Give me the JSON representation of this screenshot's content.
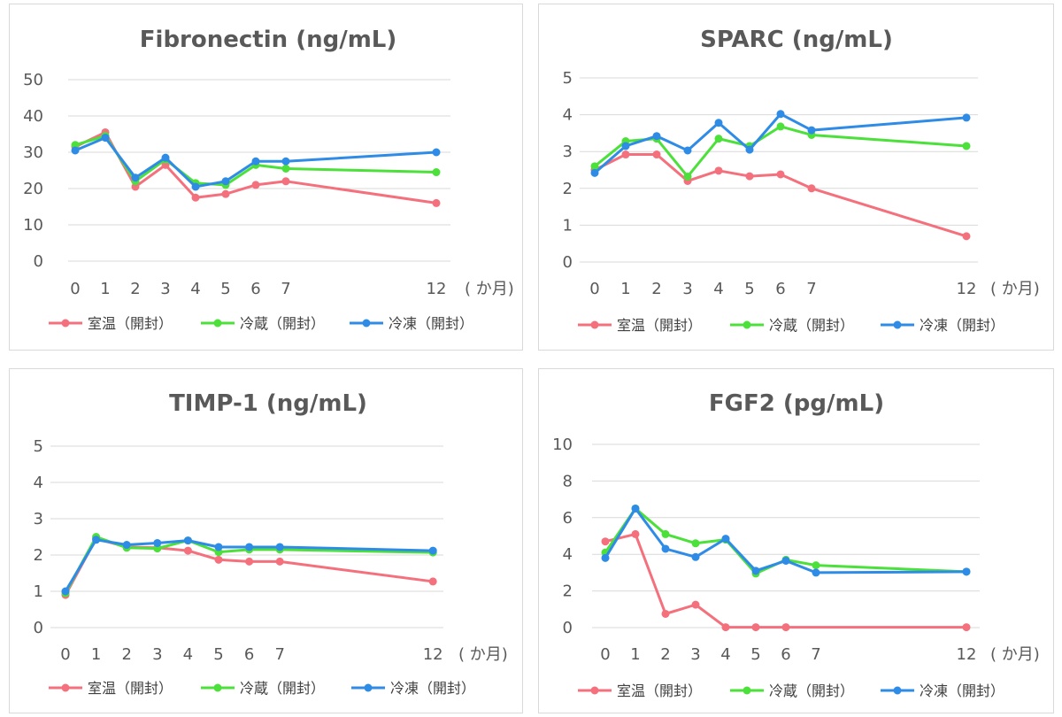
{
  "colors": {
    "room_temp": "#f4707c",
    "refrigerated": "#4ce03a",
    "frozen": "#2e8be6",
    "grid": "#d9d9d9",
    "text": "#595959"
  },
  "chart_data": [
    {
      "type": "line",
      "title": "Fibronectin (ng/mL)",
      "x": [
        0,
        1,
        2,
        3,
        4,
        5,
        6,
        7,
        12
      ],
      "xtick_labels": [
        "0",
        "1",
        "2",
        "3",
        "4",
        "5",
        "6",
        "7",
        "12"
      ],
      "x_unit": "( か月)",
      "ylim": [
        0,
        50
      ],
      "yticks": [
        0,
        10,
        20,
        30,
        40,
        50
      ],
      "grid": true,
      "legend_position": "bottom",
      "series": [
        {
          "name": "室温（開封）",
          "color_key": "room_temp",
          "values": [
            31.5,
            35.5,
            20.5,
            26.5,
            17.5,
            18.5,
            21,
            22,
            16
          ]
        },
        {
          "name": "冷蔵（開封）",
          "color_key": "refrigerated",
          "values": [
            32,
            34.5,
            22,
            28,
            21.5,
            21,
            26.5,
            25.5,
            24.5
          ]
        },
        {
          "name": "冷凍（開封）",
          "color_key": "frozen",
          "values": [
            30.5,
            34,
            23,
            28.5,
            20.5,
            22,
            27.5,
            27.5,
            30
          ]
        }
      ]
    },
    {
      "type": "line",
      "title": "SPARC (ng/mL)",
      "x": [
        0,
        1,
        2,
        3,
        4,
        5,
        6,
        7,
        12
      ],
      "xtick_labels": [
        "0",
        "1",
        "2",
        "3",
        "4",
        "5",
        "6",
        "7",
        "12"
      ],
      "x_unit": "( か月)",
      "ylim": [
        0,
        5
      ],
      "yticks": [
        0,
        1,
        2,
        3,
        4,
        5
      ],
      "grid": true,
      "legend_position": "bottom",
      "series": [
        {
          "name": "室温（開封）",
          "color_key": "room_temp",
          "values": [
            2.5,
            2.92,
            2.92,
            2.2,
            2.48,
            2.33,
            2.38,
            2.0,
            0.7
          ]
        },
        {
          "name": "冷蔵（開封）",
          "color_key": "refrigerated",
          "values": [
            2.6,
            3.28,
            3.35,
            2.32,
            3.35,
            3.15,
            3.68,
            3.45,
            3.15
          ]
        },
        {
          "name": "冷凍（開封）",
          "color_key": "frozen",
          "values": [
            2.42,
            3.15,
            3.42,
            3.03,
            3.78,
            3.05,
            4.02,
            3.58,
            3.92
          ]
        }
      ]
    },
    {
      "type": "line",
      "title": "TIMP-1 (ng/mL)",
      "x": [
        0,
        1,
        2,
        3,
        4,
        5,
        6,
        7,
        12
      ],
      "xtick_labels": [
        "0",
        "1",
        "2",
        "3",
        "4",
        "5",
        "6",
        "7",
        "12"
      ],
      "x_unit": "( か月)",
      "ylim": [
        0,
        5
      ],
      "yticks": [
        0,
        1,
        2,
        3,
        4,
        5
      ],
      "grid": true,
      "legend_position": "bottom",
      "series": [
        {
          "name": "室温（開封）",
          "color_key": "room_temp",
          "values": [
            0.9,
            2.45,
            2.22,
            2.2,
            2.12,
            1.87,
            1.82,
            1.82,
            1.27
          ]
        },
        {
          "name": "冷蔵（開封）",
          "color_key": "refrigerated",
          "values": [
            0.95,
            2.5,
            2.2,
            2.18,
            2.4,
            2.08,
            2.15,
            2.15,
            2.07
          ]
        },
        {
          "name": "冷凍（開封）",
          "color_key": "frozen",
          "values": [
            1.0,
            2.42,
            2.28,
            2.33,
            2.4,
            2.22,
            2.22,
            2.22,
            2.12
          ]
        }
      ]
    },
    {
      "type": "line",
      "title": "FGF2 (pg/mL)",
      "x": [
        0,
        1,
        2,
        3,
        4,
        5,
        6,
        7,
        12
      ],
      "xtick_labels": [
        "0",
        "1",
        "2",
        "3",
        "4",
        "5",
        "6",
        "7",
        "12"
      ],
      "x_unit": "( か月)",
      "ylim": [
        0,
        10
      ],
      "yticks": [
        0,
        2,
        4,
        6,
        8,
        10
      ],
      "grid": true,
      "legend_position": "bottom",
      "series": [
        {
          "name": "室温（開封）",
          "color_key": "room_temp",
          "values": [
            4.7,
            5.1,
            0.75,
            1.25,
            0.02,
            0.02,
            0.02,
            null,
            0.02
          ]
        },
        {
          "name": "冷蔵（開封）",
          "color_key": "refrigerated",
          "values": [
            4.1,
            6.5,
            5.1,
            4.6,
            4.8,
            2.95,
            3.7,
            3.4,
            3.05
          ]
        },
        {
          "name": "冷凍（開封）",
          "color_key": "frozen",
          "values": [
            3.8,
            6.5,
            4.3,
            3.85,
            4.85,
            3.1,
            3.65,
            3.0,
            3.05
          ]
        }
      ]
    }
  ]
}
